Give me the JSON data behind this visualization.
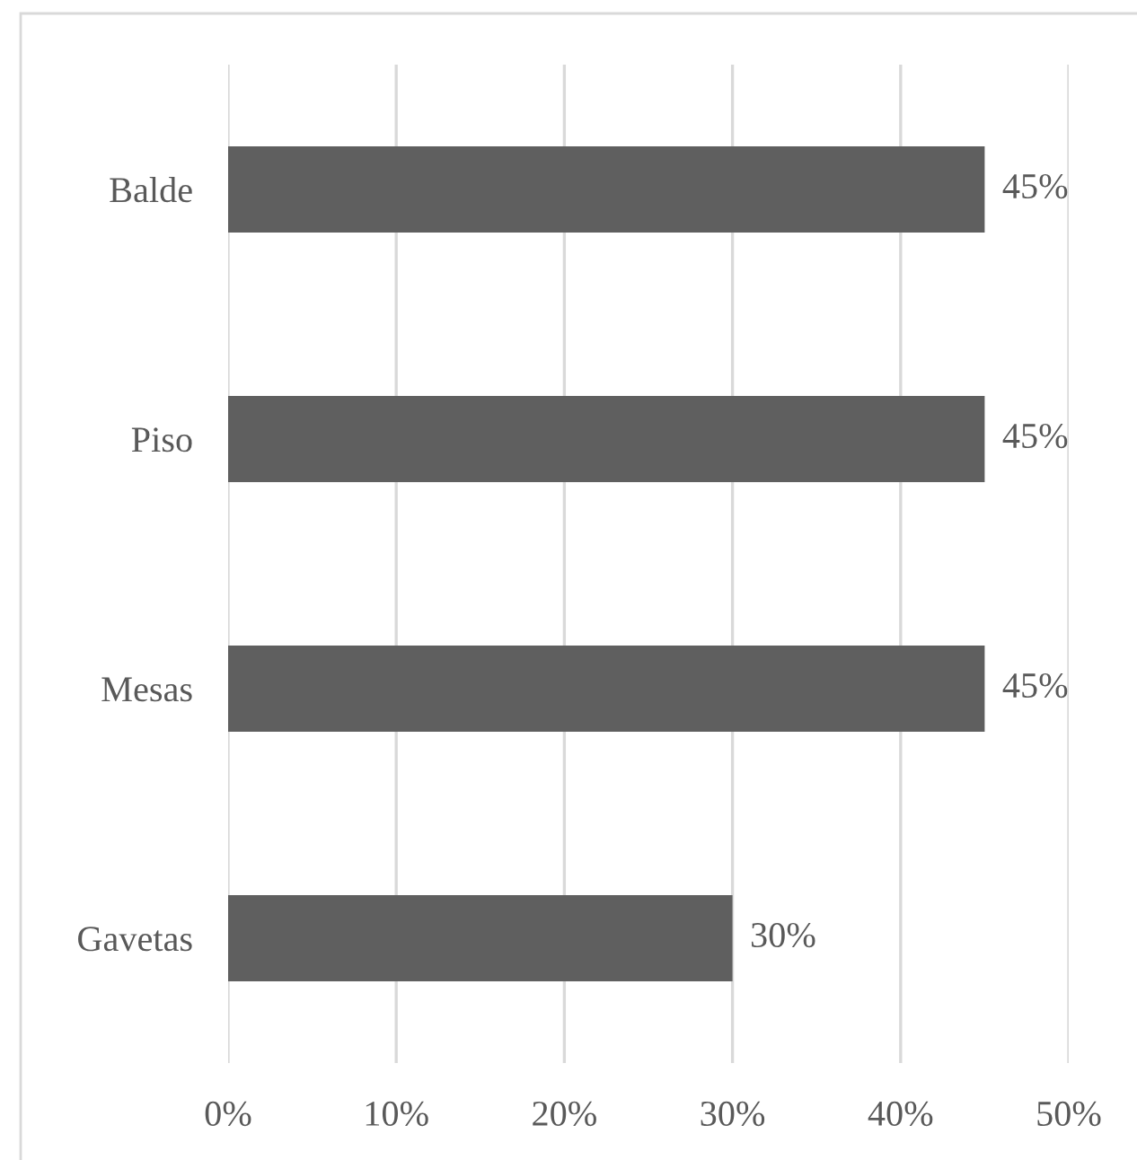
{
  "chart_data": {
    "type": "bar",
    "orientation": "horizontal",
    "categories": [
      "Balde",
      "Piso",
      "Mesas",
      "Gavetas"
    ],
    "values": [
      45,
      45,
      45,
      30
    ],
    "color": "#5f5f5f",
    "xlim": [
      0,
      50
    ],
    "xticks": [
      {
        "value": 0,
        "label": "0%"
      },
      {
        "value": 10,
        "label": "10%"
      },
      {
        "value": 20,
        "label": "20%"
      },
      {
        "value": 30,
        "label": "30%"
      },
      {
        "value": 40,
        "label": "40%"
      },
      {
        "value": 50,
        "label": "50%"
      }
    ],
    "value_labels": [
      "45%",
      "45%",
      "45%",
      "30%"
    ],
    "grid": "x",
    "legend": false
  }
}
